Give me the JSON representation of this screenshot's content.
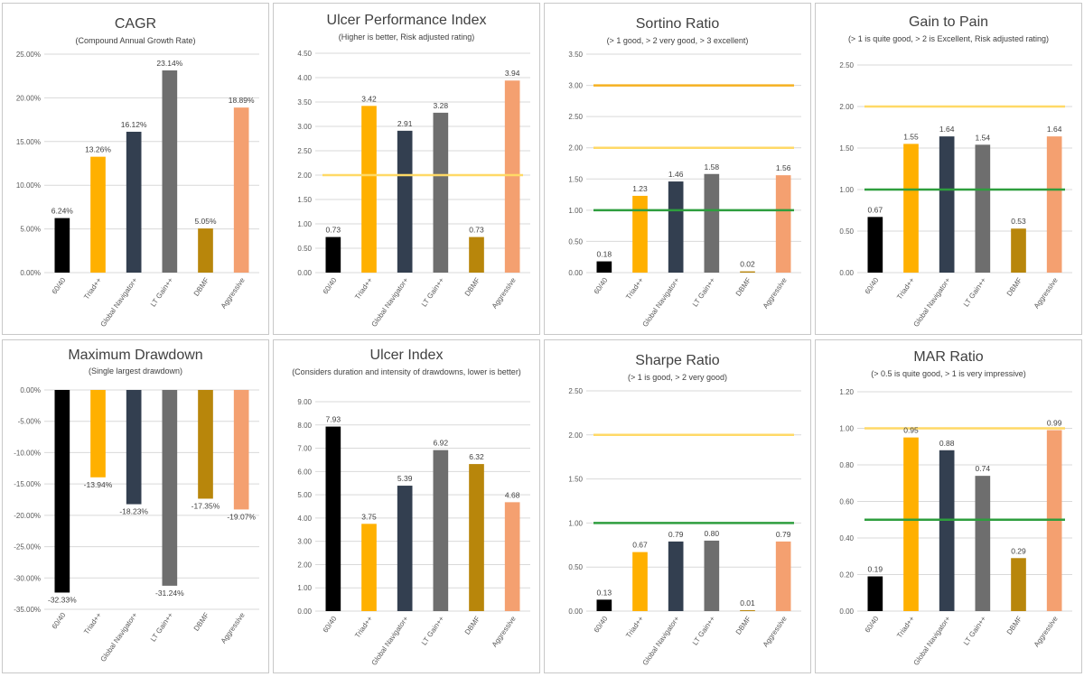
{
  "categories": [
    "60/40",
    "Triad++",
    "Global Navigator+",
    "LT Gain++",
    "DBMF",
    "Aggressive"
  ],
  "colors": [
    "#000000",
    "#FFB000",
    "#333F50",
    "#6E6E6E",
    "#B8860B",
    "#F4A070"
  ],
  "chart_data": [
    {
      "type": "bar",
      "title": "CAGR",
      "subtitle": "(Compound Annual Growth Rate)",
      "values": [
        6.24,
        13.26,
        16.12,
        23.14,
        5.05,
        18.89
      ],
      "labels": [
        "6.24%",
        "13.26%",
        "16.12%",
        "23.14%",
        "5.05%",
        "18.89%"
      ],
      "ylim": [
        0,
        25
      ],
      "yticks": [
        0,
        5,
        10,
        15,
        20,
        25
      ],
      "ytick_labels": [
        "0.00%",
        "5.00%",
        "10.00%",
        "15.00%",
        "20.00%",
        "25.00%"
      ],
      "reference_lines": []
    },
    {
      "type": "bar",
      "title": "Ulcer Performance Index",
      "subtitle": "(Higher is better, Risk adjusted rating)",
      "values": [
        0.73,
        3.42,
        2.91,
        3.28,
        0.73,
        3.94
      ],
      "labels": [
        "0.73",
        "3.42",
        "2.91",
        "3.28",
        "0.73",
        "3.94"
      ],
      "ylim": [
        0,
        4.5
      ],
      "yticks": [
        0,
        0.5,
        1,
        1.5,
        2,
        2.5,
        3,
        3.5,
        4,
        4.5
      ],
      "ytick_labels": [
        "0.00",
        "0.50",
        "1.00",
        "1.50",
        "2.00",
        "2.50",
        "3.00",
        "3.50",
        "4.00",
        "4.50"
      ],
      "reference_lines": [
        {
          "value": 2,
          "color": "#FFD966"
        }
      ]
    },
    {
      "type": "bar",
      "title": "Sortino Ratio",
      "subtitle": "(> 1 good, > 2 very good, > 3 excellent)",
      "values": [
        0.18,
        1.23,
        1.46,
        1.58,
        0.02,
        1.56
      ],
      "labels": [
        "0.18",
        "1.23",
        "1.46",
        "1.58",
        "0.02",
        "1.56"
      ],
      "ylim": [
        0,
        3.5
      ],
      "yticks": [
        0,
        0.5,
        1,
        1.5,
        2,
        2.5,
        3,
        3.5
      ],
      "ytick_labels": [
        "0.00",
        "0.50",
        "1.00",
        "1.50",
        "2.00",
        "2.50",
        "3.00",
        "3.50"
      ],
      "reference_lines": [
        {
          "value": 1,
          "color": "#2E9E3E"
        },
        {
          "value": 2,
          "color": "#FFD966"
        },
        {
          "value": 3,
          "color": "#F5B120"
        }
      ]
    },
    {
      "type": "bar",
      "title": "Gain to Pain",
      "subtitle": "(> 1 is quite good, > 2 is Excellent, Risk adjusted rating)",
      "values": [
        0.67,
        1.55,
        1.64,
        1.54,
        0.53,
        1.64
      ],
      "labels": [
        "0.67",
        "1.55",
        "1.64",
        "1.54",
        "0.53",
        "1.64"
      ],
      "ylim": [
        0,
        2.5
      ],
      "yticks": [
        0,
        0.5,
        1,
        1.5,
        2,
        2.5
      ],
      "ytick_labels": [
        "0.00",
        "0.50",
        "1.00",
        "1.50",
        "2.00",
        "2.50"
      ],
      "reference_lines": [
        {
          "value": 1,
          "color": "#2E9E3E"
        },
        {
          "value": 2,
          "color": "#FFD966"
        }
      ]
    },
    {
      "type": "bar",
      "title": "Maximum Drawdown",
      "subtitle": "(Single largest drawdown)",
      "values": [
        -32.33,
        -13.94,
        -18.23,
        -31.24,
        -17.35,
        -19.07
      ],
      "labels": [
        "-32.33%",
        "-13.94%",
        "-18.23%",
        "-31.24%",
        "-17.35%",
        "-19.07%"
      ],
      "ylim": [
        -35,
        0
      ],
      "yticks": [
        0,
        -5,
        -10,
        -15,
        -20,
        -25,
        -30,
        -35
      ],
      "ytick_labels": [
        "0.00%",
        "-5.00%",
        "-10.00%",
        "-15.00%",
        "-20.00%",
        "-25.00%",
        "-30.00%",
        "-35.00%"
      ],
      "reference_lines": []
    },
    {
      "type": "bar",
      "title": "Ulcer Index",
      "subtitle": "(Considers duration and intensity of drawdowns, lower is better)",
      "values": [
        7.93,
        3.75,
        5.39,
        6.92,
        6.32,
        4.68
      ],
      "labels": [
        "7.93",
        "3.75",
        "5.39",
        "6.92",
        "6.32",
        "4.68"
      ],
      "ylim": [
        0,
        9
      ],
      "yticks": [
        0,
        1,
        2,
        3,
        4,
        5,
        6,
        7,
        8,
        9
      ],
      "ytick_labels": [
        "0.00",
        "1.00",
        "2.00",
        "3.00",
        "4.00",
        "5.00",
        "6.00",
        "7.00",
        "8.00",
        "9.00"
      ],
      "reference_lines": []
    },
    {
      "type": "bar",
      "title": "Sharpe Ratio",
      "subtitle": "(> 1 is good, > 2 very good)",
      "values": [
        0.13,
        0.67,
        0.79,
        0.8,
        0.01,
        0.79
      ],
      "labels": [
        "0.13",
        "0.67",
        "0.79",
        "0.80",
        "0.01",
        "0.79"
      ],
      "ylim": [
        0,
        2.5
      ],
      "yticks": [
        0,
        0.5,
        1,
        1.5,
        2,
        2.5
      ],
      "ytick_labels": [
        "0.00",
        "0.50",
        "1.00",
        "1.50",
        "2.00",
        "2.50"
      ],
      "reference_lines": [
        {
          "value": 1,
          "color": "#2E9E3E"
        },
        {
          "value": 2,
          "color": "#FFD966"
        }
      ]
    },
    {
      "type": "bar",
      "title": "MAR Ratio",
      "subtitle": "(> 0.5 is quite good, > 1 is very impressive)",
      "values": [
        0.19,
        0.95,
        0.88,
        0.74,
        0.29,
        0.99
      ],
      "labels": [
        "0.19",
        "0.95",
        "0.88",
        "0.74",
        "0.29",
        "0.99"
      ],
      "ylim": [
        0,
        1.2
      ],
      "yticks": [
        0,
        0.2,
        0.4,
        0.6,
        0.8,
        1,
        1.2
      ],
      "ytick_labels": [
        "0.00",
        "0.20",
        "0.40",
        "0.60",
        "0.80",
        "1.00",
        "1.20"
      ],
      "reference_lines": [
        {
          "value": 0.5,
          "color": "#2E9E3E"
        },
        {
          "value": 1,
          "color": "#FFD966"
        }
      ]
    }
  ]
}
